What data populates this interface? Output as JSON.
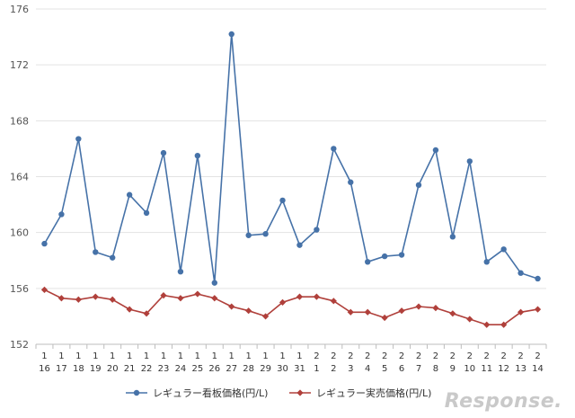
{
  "chart_data": {
    "type": "line",
    "title": "",
    "xlabel": "",
    "ylabel": "",
    "ylim": [
      152,
      176
    ],
    "yticks": [
      152,
      156,
      160,
      164,
      168,
      172,
      176
    ],
    "grid": "horizontal",
    "legend_position": "bottom",
    "x_month": [
      "1",
      "1",
      "1",
      "1",
      "1",
      "1",
      "1",
      "1",
      "1",
      "1",
      "1",
      "1",
      "1",
      "1",
      "1",
      "1",
      "2",
      "2",
      "2",
      "2",
      "2",
      "2",
      "2",
      "2",
      "2",
      "2",
      "2",
      "2",
      "2",
      "2"
    ],
    "x_day": [
      "16",
      "17",
      "18",
      "19",
      "20",
      "21",
      "22",
      "23",
      "24",
      "25",
      "26",
      "27",
      "28",
      "29",
      "30",
      "31",
      "1",
      "2",
      "3",
      "4",
      "5",
      "6",
      "7",
      "8",
      "9",
      "10",
      "11",
      "12",
      "13",
      "14"
    ],
    "series": [
      {
        "name": "レギュラー看板価格(円/L)",
        "color": "#4672a8",
        "marker": "circle",
        "values": [
          159.2,
          161.3,
          166.7,
          158.6,
          158.2,
          162.7,
          161.4,
          165.7,
          157.2,
          165.5,
          156.4,
          174.2,
          159.8,
          159.9,
          162.3,
          159.1,
          160.2,
          166.0,
          163.6,
          157.9,
          158.3,
          158.4,
          163.4,
          165.9,
          159.7,
          165.1,
          157.9,
          158.8,
          157.1,
          156.7
        ]
      },
      {
        "name": "レギュラー実売価格(円/L)",
        "color": "#b0403b",
        "marker": "diamond",
        "values": [
          155.9,
          155.3,
          155.2,
          155.4,
          155.2,
          154.5,
          154.2,
          155.5,
          155.3,
          155.6,
          155.3,
          154.7,
          154.4,
          154.0,
          155.0,
          155.4,
          155.4,
          155.1,
          154.3,
          154.3,
          153.9,
          154.4,
          154.7,
          154.6,
          154.2,
          153.8,
          153.4,
          153.4,
          154.3,
          154.5
        ]
      }
    ]
  },
  "watermark": "Response."
}
